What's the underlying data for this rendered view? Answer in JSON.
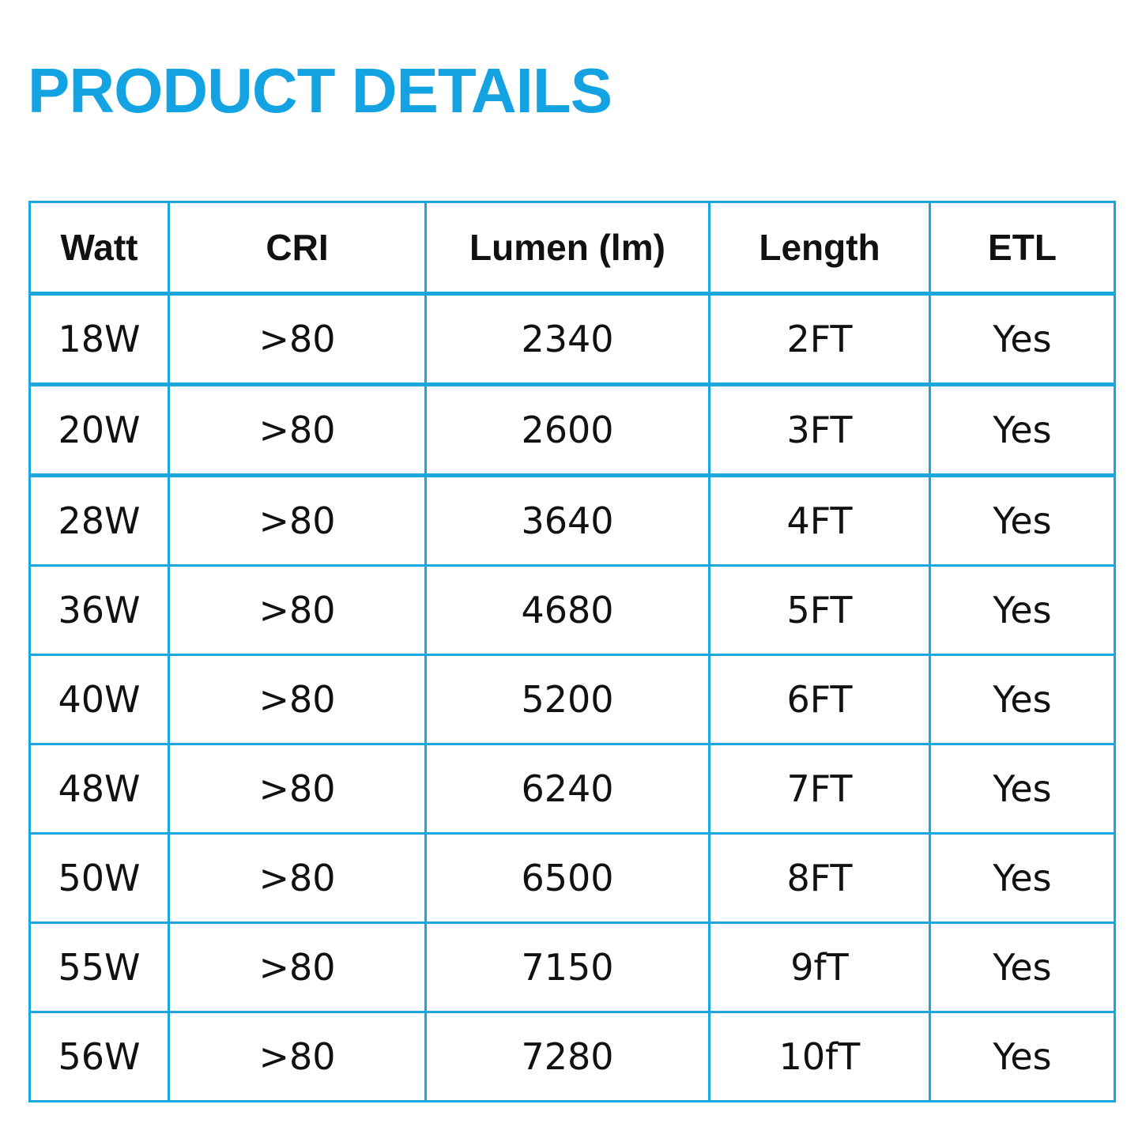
{
  "title": "PRODUCT DETAILS",
  "colors": {
    "accent": "#13a3e2",
    "border": "#1ba6e0",
    "text": "#111111"
  },
  "table": {
    "headers": [
      "Watt",
      "CRI",
      "Lumen (lm)",
      "Length",
      "ETL"
    ],
    "rows": [
      [
        "18W",
        ">80",
        "2340",
        "2FT",
        "Yes"
      ],
      [
        "20W",
        ">80",
        "2600",
        "3FT",
        "Yes"
      ],
      [
        "28W",
        ">80",
        "3640",
        "4FT",
        "Yes"
      ],
      [
        "36W",
        ">80",
        "4680",
        "5FT",
        "Yes"
      ],
      [
        "40W",
        ">80",
        "5200",
        "6FT",
        "Yes"
      ],
      [
        "48W",
        ">80",
        "6240",
        "7FT",
        "Yes"
      ],
      [
        "50W",
        ">80",
        "6500",
        "8FT",
        "Yes"
      ],
      [
        "55W",
        ">80",
        "7150",
        "9fT",
        "Yes"
      ],
      [
        "56W",
        ">80",
        "7280",
        "10fT",
        "Yes"
      ]
    ]
  }
}
